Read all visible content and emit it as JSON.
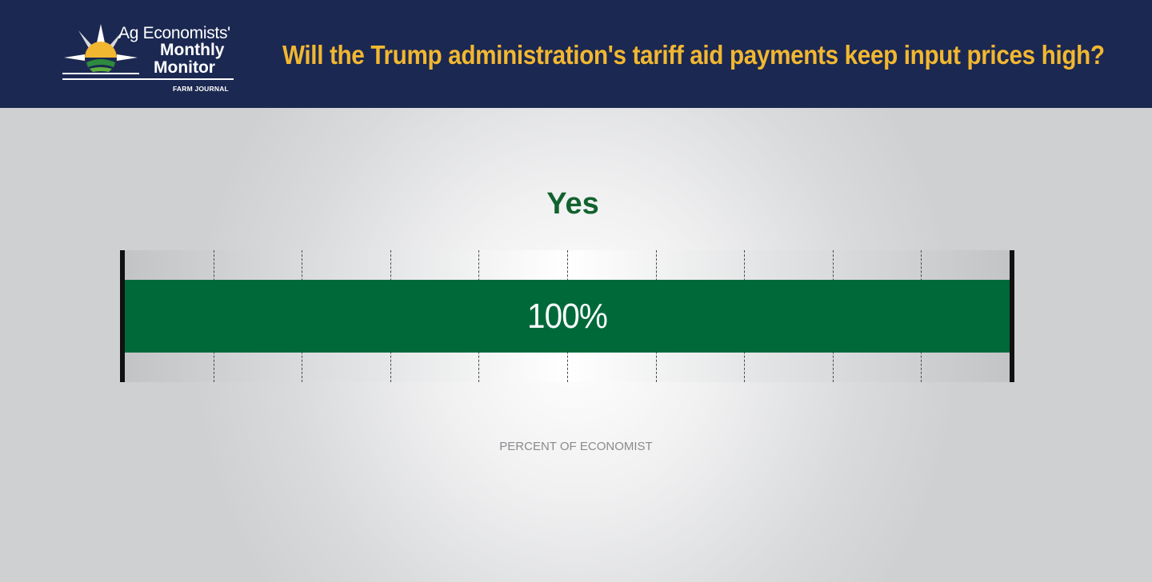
{
  "header": {
    "logo": {
      "line1": "Ag Economists'",
      "line2": "Monthly",
      "line3": "Monitor",
      "brand": "FARM JOURNAL",
      "icon": "compass-sun-farm-icon"
    },
    "headline": "Will the Trump administration's tariff aid payments keep input prices high?"
  },
  "colors": {
    "header_bg": "#1b2851",
    "headline": "#f2b731",
    "bar": "#00693a",
    "answer_text": "#12622e"
  },
  "chart_data": {
    "type": "bar",
    "orientation": "horizontal",
    "categories": [
      "Yes"
    ],
    "values": [
      100
    ],
    "value_labels": [
      "100%"
    ],
    "xlabel": "PERCENT OF ECONOMIST",
    "xlim": [
      0,
      100
    ],
    "grid_ticks": [
      10,
      20,
      30,
      40,
      50,
      60,
      70,
      80,
      90
    ],
    "grid": true
  }
}
